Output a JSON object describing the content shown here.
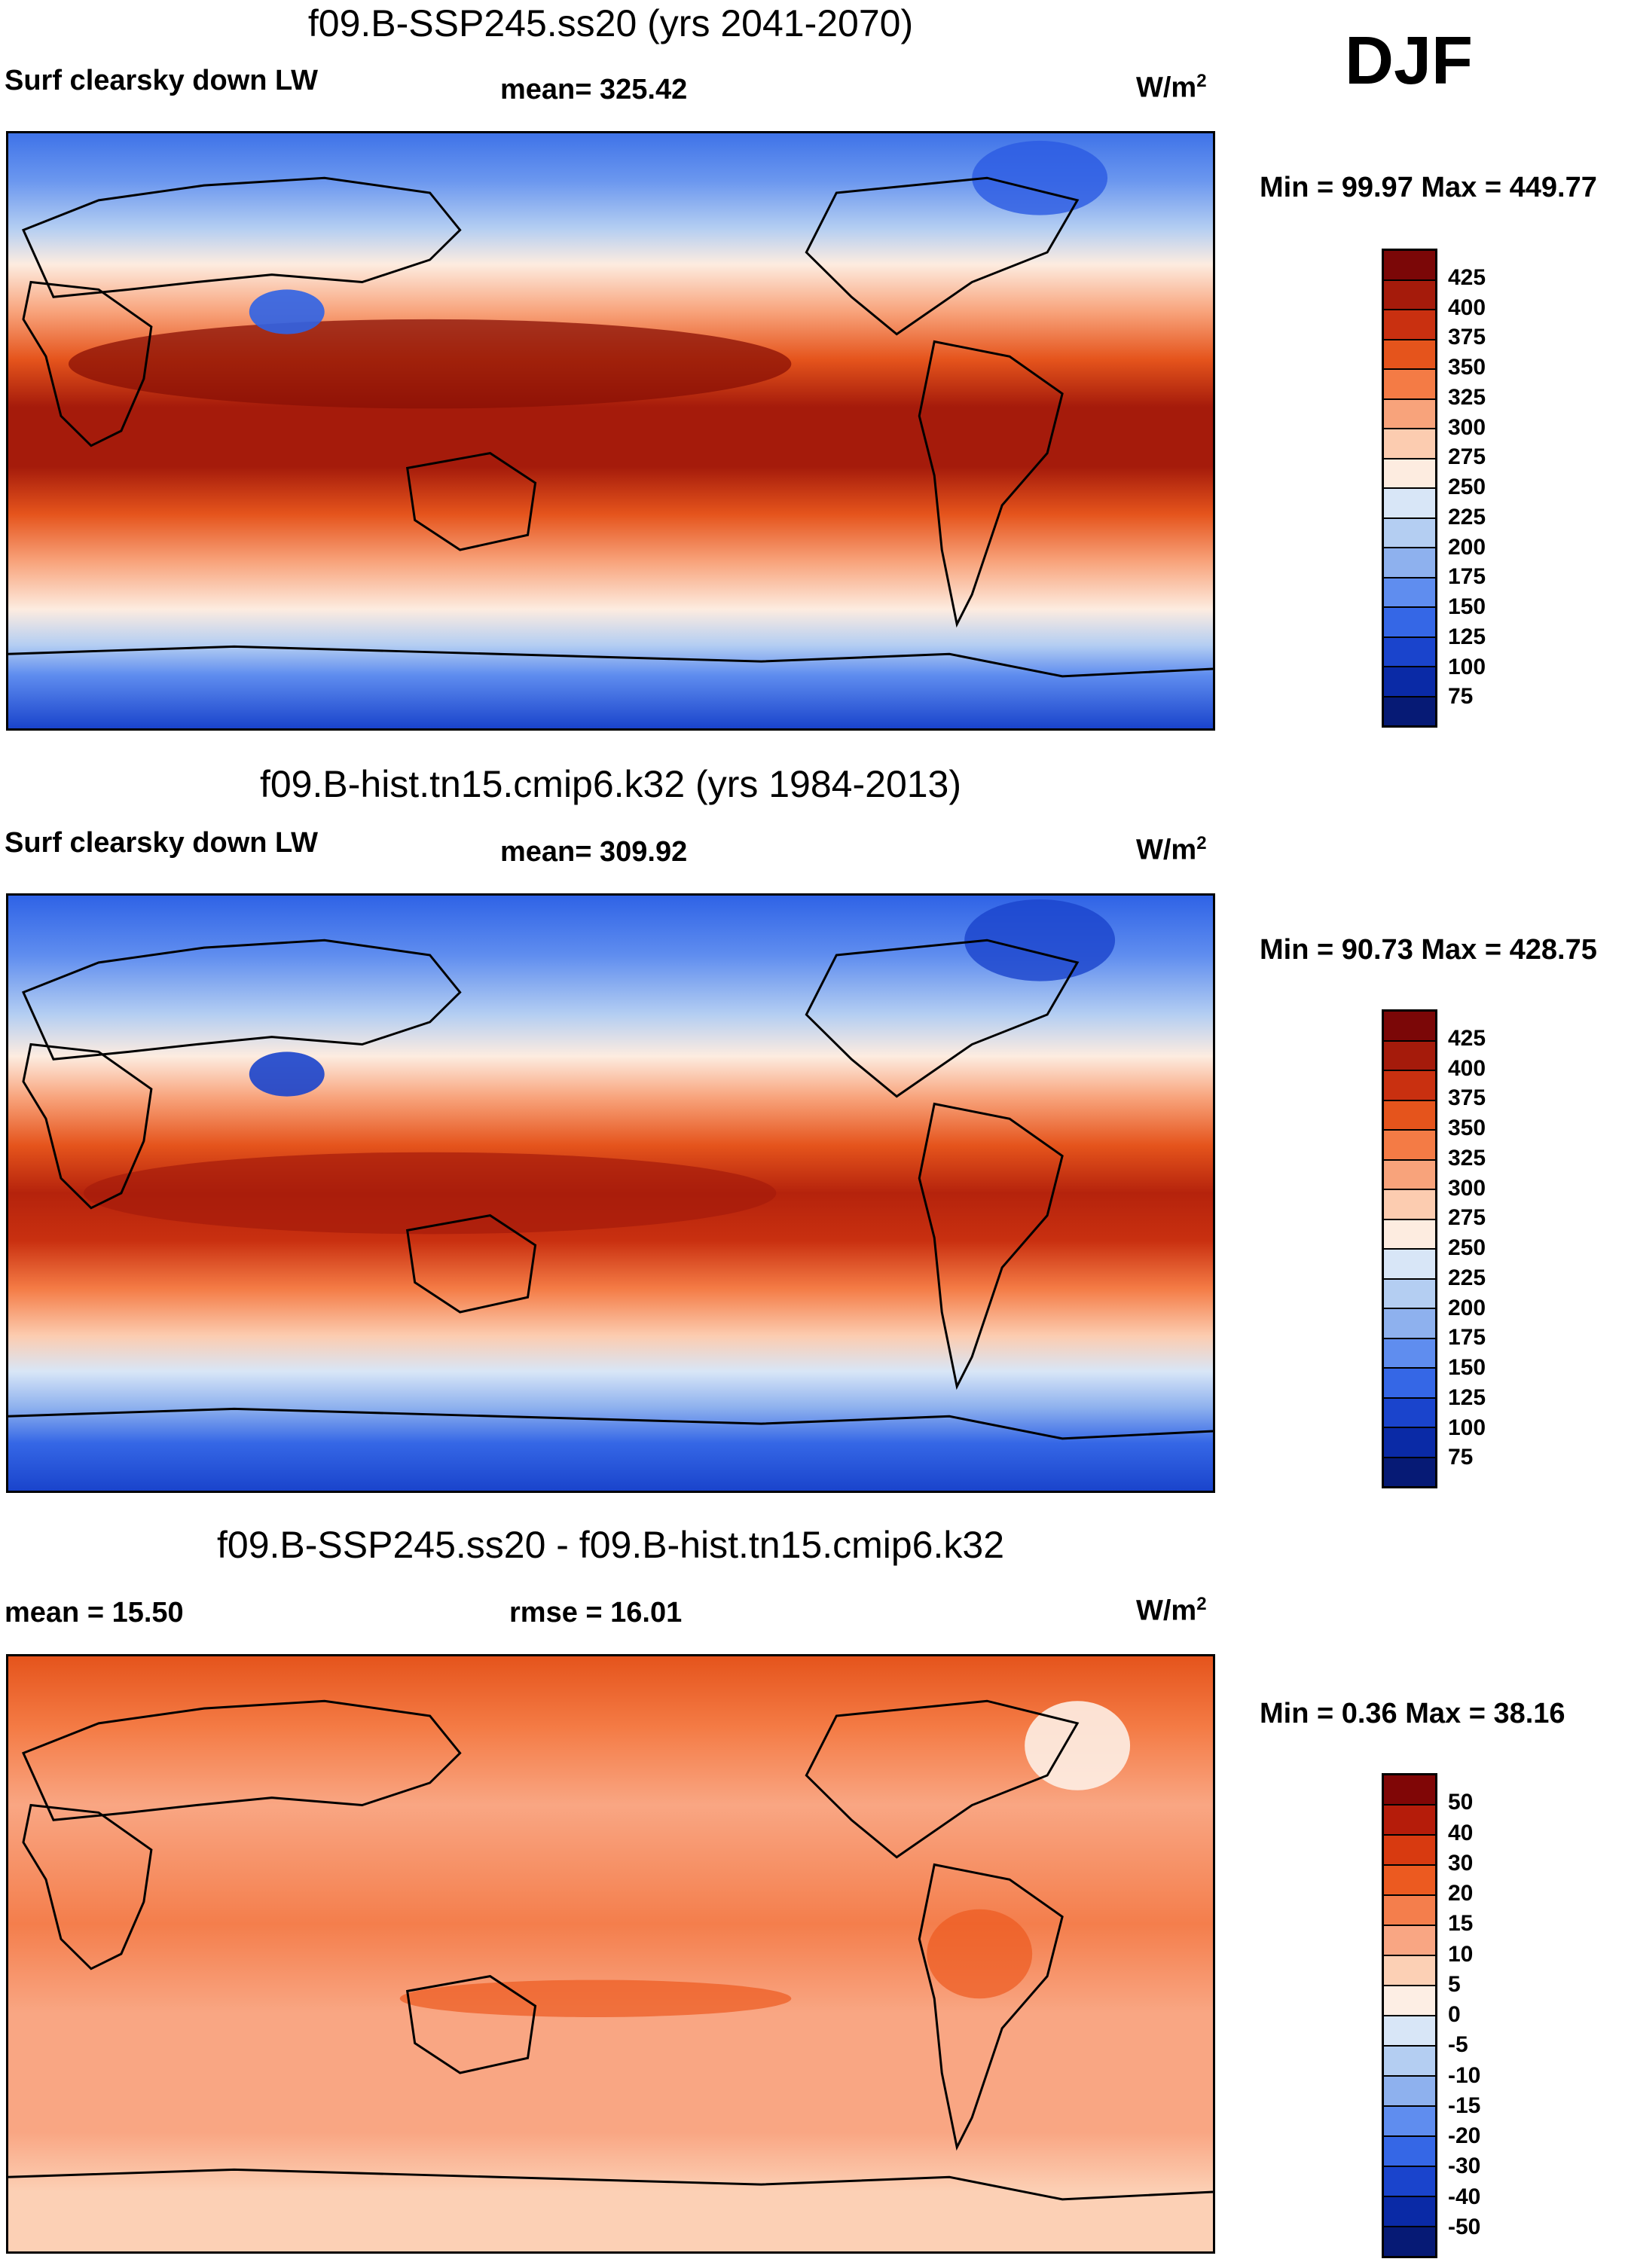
{
  "season": "DJF",
  "units_main": "W/m",
  "units_sup": "2",
  "panels": [
    {
      "title": "f09.B-SSP245.ss20 (yrs 2041-2070)",
      "left_label": "Surf clearsky down LW",
      "stat_label": "mean= 325.42",
      "minmax": "Min =  99.97 Max = 449.77",
      "colorbar": [
        "425",
        "400",
        "375",
        "350",
        "325",
        "300",
        "275",
        "250",
        "225",
        "200",
        "175",
        "150",
        "125",
        "100",
        "75"
      ]
    },
    {
      "title": "f09.B-hist.tn15.cmip6.k32 (yrs 1984-2013)",
      "left_label": "Surf clearsky down LW",
      "stat_label": "mean= 309.92",
      "minmax": "Min =  90.73 Max = 428.75",
      "colorbar": [
        "425",
        "400",
        "375",
        "350",
        "325",
        "300",
        "275",
        "250",
        "225",
        "200",
        "175",
        "150",
        "125",
        "100",
        "75"
      ]
    },
    {
      "title": "f09.B-SSP245.ss20 - f09.B-hist.tn15.cmip6.k32",
      "left_label": "mean =  15.50",
      "stat_label": "rmse =  16.01",
      "minmax": "Min =   0.36 Max =  38.16",
      "colorbar": [
        "50",
        "40",
        "30",
        "20",
        "15",
        "10",
        "5",
        "0",
        "-5",
        "-10",
        "-15",
        "-20",
        "-30",
        "-40",
        "-50"
      ]
    }
  ],
  "palette_abs": [
    "#7b0707",
    "#a51b0b",
    "#c93010",
    "#e5541c",
    "#f47b45",
    "#f8a37b",
    "#fcccb0",
    "#fdece0",
    "#d8e6f7",
    "#b4cef2",
    "#8eb1ee",
    "#5f8def",
    "#3567e6",
    "#1a44cc",
    "#0a2aa6",
    "#061a75"
  ],
  "palette_diff": [
    "#800606",
    "#b51c0a",
    "#d83a10",
    "#ec5a20",
    "#f47e4c",
    "#f9a683",
    "#fcd0b5",
    "#fdeee4",
    "#d8e6f7",
    "#b4cef2",
    "#8eb1ee",
    "#5f8def",
    "#3567e6",
    "#1a44cc",
    "#0a2aa6",
    "#061a75"
  ]
}
